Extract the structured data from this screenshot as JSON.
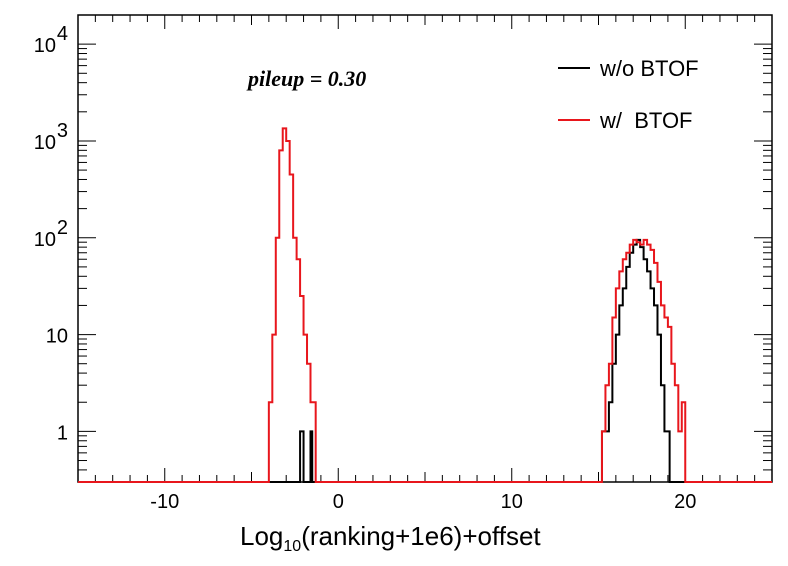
{
  "chart_data": {
    "type": "step-histogram",
    "xlabel_main": "Log",
    "xlabel_sub": "10",
    "xlabel_rest": "(ranking+1e6)+offset",
    "ylabel": "",
    "xlim": [
      -15,
      25
    ],
    "ylim": [
      0.3,
      20000
    ],
    "yscale": "log",
    "x_ticks": [
      -10,
      0,
      10,
      20
    ],
    "y_ticks": [
      {
        "value": 1,
        "base": "1",
        "exp": ""
      },
      {
        "value": 10,
        "base": "10",
        "exp": ""
      },
      {
        "value": 100,
        "base": "10",
        "exp": "2"
      },
      {
        "value": 1000,
        "base": "10",
        "exp": "3"
      },
      {
        "value": 10000,
        "base": "10",
        "exp": "4"
      }
    ],
    "annotation": "pileup = 0.30",
    "legend_position": "top-right",
    "series": [
      {
        "name": "w/o BTOF",
        "color": "#000000",
        "points": [
          [
            -15,
            0.3
          ],
          [
            -2.2,
            0.3
          ],
          [
            -2.2,
            1
          ],
          [
            -2.0,
            1
          ],
          [
            -2.0,
            0.3
          ],
          [
            -1.6,
            0.3
          ],
          [
            -1.6,
            1
          ],
          [
            -1.5,
            1
          ],
          [
            -1.5,
            0.3
          ],
          [
            14.5,
            0.3
          ],
          [
            15.2,
            0.3
          ],
          [
            15.2,
            1
          ],
          [
            15.6,
            1
          ],
          [
            15.6,
            2
          ],
          [
            15.8,
            2
          ],
          [
            15.8,
            5
          ],
          [
            16.0,
            5
          ],
          [
            16.0,
            10
          ],
          [
            16.2,
            10
          ],
          [
            16.2,
            20
          ],
          [
            16.4,
            20
          ],
          [
            16.4,
            30
          ],
          [
            16.6,
            30
          ],
          [
            16.6,
            50
          ],
          [
            16.8,
            50
          ],
          [
            16.8,
            70
          ],
          [
            17.0,
            70
          ],
          [
            17.0,
            85
          ],
          [
            17.2,
            85
          ],
          [
            17.2,
            95
          ],
          [
            17.4,
            95
          ],
          [
            17.4,
            80
          ],
          [
            17.6,
            80
          ],
          [
            17.6,
            60
          ],
          [
            17.8,
            60
          ],
          [
            17.8,
            45
          ],
          [
            18.0,
            45
          ],
          [
            18.0,
            30
          ],
          [
            18.2,
            30
          ],
          [
            18.2,
            20
          ],
          [
            18.4,
            20
          ],
          [
            18.4,
            10
          ],
          [
            18.6,
            10
          ],
          [
            18.6,
            3
          ],
          [
            18.8,
            3
          ],
          [
            18.8,
            1
          ],
          [
            19.1,
            1
          ],
          [
            19.1,
            0.3
          ],
          [
            25,
            0.3
          ]
        ]
      },
      {
        "name": "w/  BTOF",
        "color": "#e8161c",
        "points": [
          [
            -15,
            0.3
          ],
          [
            -4.0,
            0.3
          ],
          [
            -4.0,
            2
          ],
          [
            -3.8,
            2
          ],
          [
            -3.8,
            10
          ],
          [
            -3.6,
            10
          ],
          [
            -3.6,
            100
          ],
          [
            -3.4,
            100
          ],
          [
            -3.4,
            800
          ],
          [
            -3.2,
            800
          ],
          [
            -3.2,
            1350
          ],
          [
            -3.0,
            1350
          ],
          [
            -3.0,
            1000
          ],
          [
            -2.8,
            1000
          ],
          [
            -2.8,
            450
          ],
          [
            -2.6,
            450
          ],
          [
            -2.6,
            100
          ],
          [
            -2.4,
            100
          ],
          [
            -2.4,
            60
          ],
          [
            -2.2,
            60
          ],
          [
            -2.2,
            25
          ],
          [
            -2.0,
            25
          ],
          [
            -2.0,
            10
          ],
          [
            -1.8,
            10
          ],
          [
            -1.8,
            5
          ],
          [
            -1.6,
            5
          ],
          [
            -1.6,
            2
          ],
          [
            -1.3,
            2
          ],
          [
            -1.3,
            0.3
          ],
          [
            14.8,
            0.3
          ],
          [
            15.2,
            0.3
          ],
          [
            15.2,
            1
          ],
          [
            15.4,
            1
          ],
          [
            15.4,
            3
          ],
          [
            15.6,
            3
          ],
          [
            15.6,
            5
          ],
          [
            15.8,
            5
          ],
          [
            15.8,
            15
          ],
          [
            16.0,
            15
          ],
          [
            16.0,
            30
          ],
          [
            16.2,
            30
          ],
          [
            16.2,
            45
          ],
          [
            16.4,
            45
          ],
          [
            16.4,
            60
          ],
          [
            16.6,
            60
          ],
          [
            16.6,
            70
          ],
          [
            16.8,
            70
          ],
          [
            16.8,
            85
          ],
          [
            17.0,
            85
          ],
          [
            17.0,
            95
          ],
          [
            17.2,
            95
          ],
          [
            17.2,
            90
          ],
          [
            17.4,
            90
          ],
          [
            17.4,
            85
          ],
          [
            17.6,
            85
          ],
          [
            17.6,
            95
          ],
          [
            17.8,
            95
          ],
          [
            17.8,
            85
          ],
          [
            18.0,
            85
          ],
          [
            18.0,
            75
          ],
          [
            18.2,
            75
          ],
          [
            18.2,
            55
          ],
          [
            18.4,
            55
          ],
          [
            18.4,
            35
          ],
          [
            18.6,
            35
          ],
          [
            18.6,
            20
          ],
          [
            18.8,
            20
          ],
          [
            18.8,
            15
          ],
          [
            19.0,
            15
          ],
          [
            19.0,
            12
          ],
          [
            19.2,
            12
          ],
          [
            19.2,
            5
          ],
          [
            19.4,
            5
          ],
          [
            19.4,
            3
          ],
          [
            19.6,
            3
          ],
          [
            19.6,
            1
          ],
          [
            19.8,
            1
          ],
          [
            19.8,
            2
          ],
          [
            20.0,
            2
          ],
          [
            20.0,
            0.3
          ],
          [
            25,
            0.3
          ]
        ]
      }
    ]
  }
}
